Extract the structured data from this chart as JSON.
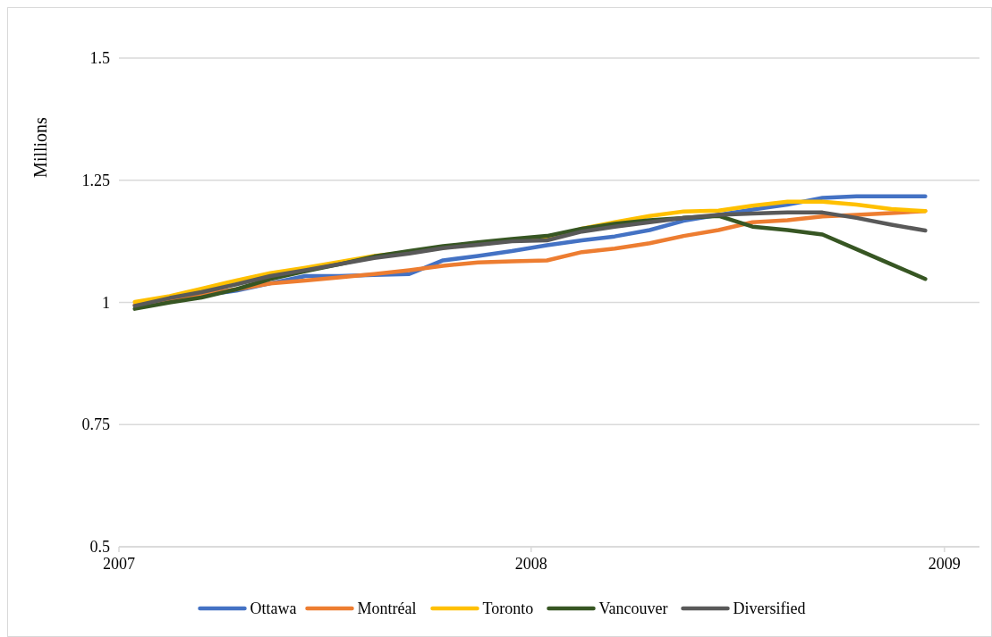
{
  "chart_data": {
    "type": "line",
    "ylabel": "Millions",
    "x": [
      "2007-01-15",
      "2007-02-15",
      "2007-03-15",
      "2007-04-15",
      "2007-05-15",
      "2007-06-15",
      "2007-07-15",
      "2007-08-15",
      "2007-09-15",
      "2007-10-15",
      "2007-11-15",
      "2007-12-15",
      "2008-01-15",
      "2008-02-15",
      "2008-03-15",
      "2008-04-15",
      "2008-05-15",
      "2008-06-15",
      "2008-07-15",
      "2008-08-15",
      "2008-09-15",
      "2008-10-15",
      "2008-11-15",
      "2008-12-15"
    ],
    "series": [
      {
        "name": "Ottawa",
        "color": "#4472c4",
        "values": [
          null,
          null,
          1.015,
          1.024,
          1.039,
          1.054,
          1.054,
          1.056,
          1.058,
          1.086,
          1.095,
          1.105,
          1.117,
          1.127,
          1.135,
          1.148,
          1.167,
          1.179,
          1.19,
          1.2,
          1.214,
          1.217,
          1.217,
          1.217
        ]
      },
      {
        "name": "Montréal",
        "color": "#ed7d31",
        "values": [
          0.995,
          1.007,
          1.016,
          1.027,
          1.039,
          1.045,
          1.051,
          1.058,
          1.066,
          1.075,
          1.082,
          1.084,
          1.086,
          1.103,
          1.11,
          1.121,
          1.136,
          1.148,
          1.164,
          1.168,
          1.176,
          1.179,
          1.183,
          1.187
        ]
      },
      {
        "name": "Toronto",
        "color": "#ffc000",
        "values": [
          1.001,
          1.013,
          1.028,
          1.045,
          1.06,
          1.071,
          1.083,
          1.095,
          1.103,
          1.112,
          1.119,
          1.127,
          1.129,
          1.151,
          1.164,
          1.177,
          1.186,
          1.188,
          1.198,
          1.206,
          1.206,
          1.2,
          1.191,
          1.187
        ]
      },
      {
        "name": "Vancouver",
        "color": "#375623",
        "values": [
          0.987,
          1.0,
          1.01,
          1.027,
          1.048,
          1.064,
          1.078,
          1.094,
          1.105,
          1.115,
          1.123,
          1.13,
          1.136,
          1.151,
          1.161,
          1.168,
          1.173,
          1.177,
          1.155,
          1.148,
          1.139,
          1.109,
          1.078,
          1.048
        ]
      },
      {
        "name": "Diversified",
        "color": "#595959",
        "values": [
          0.993,
          1.009,
          1.021,
          1.037,
          1.054,
          1.066,
          1.078,
          1.091,
          1.1,
          1.111,
          1.118,
          1.125,
          1.127,
          1.145,
          1.155,
          1.164,
          1.173,
          1.179,
          1.182,
          1.184,
          1.184,
          1.173,
          1.159,
          1.147
        ]
      }
    ],
    "xlim": [
      "2007-01-01",
      "2009-02-01"
    ],
    "xticks": [
      "2007",
      "2008",
      "2009"
    ],
    "ylim": [
      0.5,
      1.5
    ],
    "yticks": [
      0.5,
      0.75,
      1,
      1.25,
      1.5
    ],
    "grid": "y",
    "legend": "bottom",
    "marker": "none",
    "line_style": "solid"
  }
}
